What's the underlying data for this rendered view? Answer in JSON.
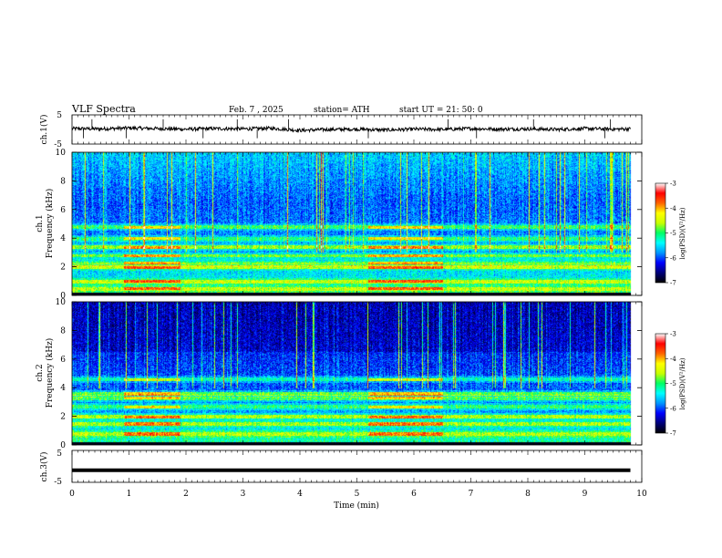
{
  "header": {
    "title": "VLF  Spectra",
    "date": "Feb. 7  , 2025",
    "station": "station= ATH",
    "start_ut": "start  UT  =   21: 50: 0"
  },
  "chart_data": [
    {
      "type": "line",
      "id": "ch1-waveform",
      "ylabel": "ch.1(V)",
      "ylim": [
        -5,
        5
      ],
      "yticks": [
        "5",
        "-5"
      ],
      "x_unit": "min",
      "x": [
        0,
        0.5,
        1,
        1.5,
        2,
        2.5,
        3,
        3.5,
        4,
        4.5,
        5,
        5.5,
        6,
        6.5,
        7,
        7.5,
        8,
        8.5,
        9,
        9.5,
        9.8
      ],
      "y": [
        0.3,
        0.2,
        0.5,
        0.3,
        0.1,
        0.3,
        0.2,
        0.4,
        -0.3,
        0.0,
        0.1,
        -0.2,
        0.1,
        0.0,
        0.3,
        0.1,
        0.2,
        0.0,
        0.3,
        0.1,
        0.2
      ]
    },
    {
      "type": "heatmap",
      "id": "ch1-spectrogram",
      "ylabel_line1": "ch.1",
      "ylabel_line2": "Frequency  (kHz)",
      "ylim": [
        0,
        10
      ],
      "yticks": [
        "0",
        "2",
        "4",
        "6",
        "8",
        "10"
      ],
      "colorbar": {
        "label": "log(PSD)(V²/Hz)",
        "range": [
          -7,
          -3
        ],
        "ticks": [
          "-3",
          "-4",
          "-5",
          "-6",
          "-7"
        ]
      },
      "bands_khz": [
        0.5,
        1.0,
        2.0,
        2.3,
        2.8,
        3.4,
        4.0,
        4.8
      ],
      "enhancement_intervals_min": [
        [
          0.9,
          1.9
        ],
        [
          5.2,
          6.5
        ]
      ]
    },
    {
      "type": "heatmap",
      "id": "ch2-spectrogram",
      "ylabel_line1": "ch.2",
      "ylabel_line2": "Frequency  (kHz)",
      "ylim": [
        0,
        10
      ],
      "yticks": [
        "0",
        "2",
        "4",
        "6",
        "8",
        "10"
      ],
      "colorbar": {
        "label": "log(PSD)(V²/Hz)",
        "range": [
          -7,
          -3
        ],
        "ticks": [
          "-3",
          "-4",
          "-5",
          "-6",
          "-7"
        ]
      },
      "bands_khz": [
        0.8,
        1.5,
        2.0,
        2.7,
        3.3,
        3.6,
        4.6
      ],
      "enhancement_intervals_min": [
        [
          0.9,
          1.9
        ],
        [
          5.2,
          6.5
        ]
      ]
    },
    {
      "type": "line",
      "id": "ch3-waveform",
      "ylabel": "ch.3(V)",
      "ylim": [
        -5,
        5
      ],
      "yticks": [
        "5",
        "-5"
      ],
      "x": [
        0,
        9.8
      ],
      "y": [
        -1.2,
        -1.2
      ]
    }
  ],
  "x_axis": {
    "label": "Time  (min)",
    "range": [
      0,
      10
    ],
    "ticks": [
      "0",
      "1",
      "2",
      "3",
      "4",
      "5",
      "6",
      "7",
      "8",
      "9",
      "10"
    ]
  },
  "colors": {
    "colormap": [
      "#000000",
      "#00007a",
      "#0000ff",
      "#0096ff",
      "#00ffff",
      "#00ff64",
      "#c8ff00",
      "#ffff00",
      "#ff6400",
      "#ff0000",
      "#ffffff"
    ]
  }
}
